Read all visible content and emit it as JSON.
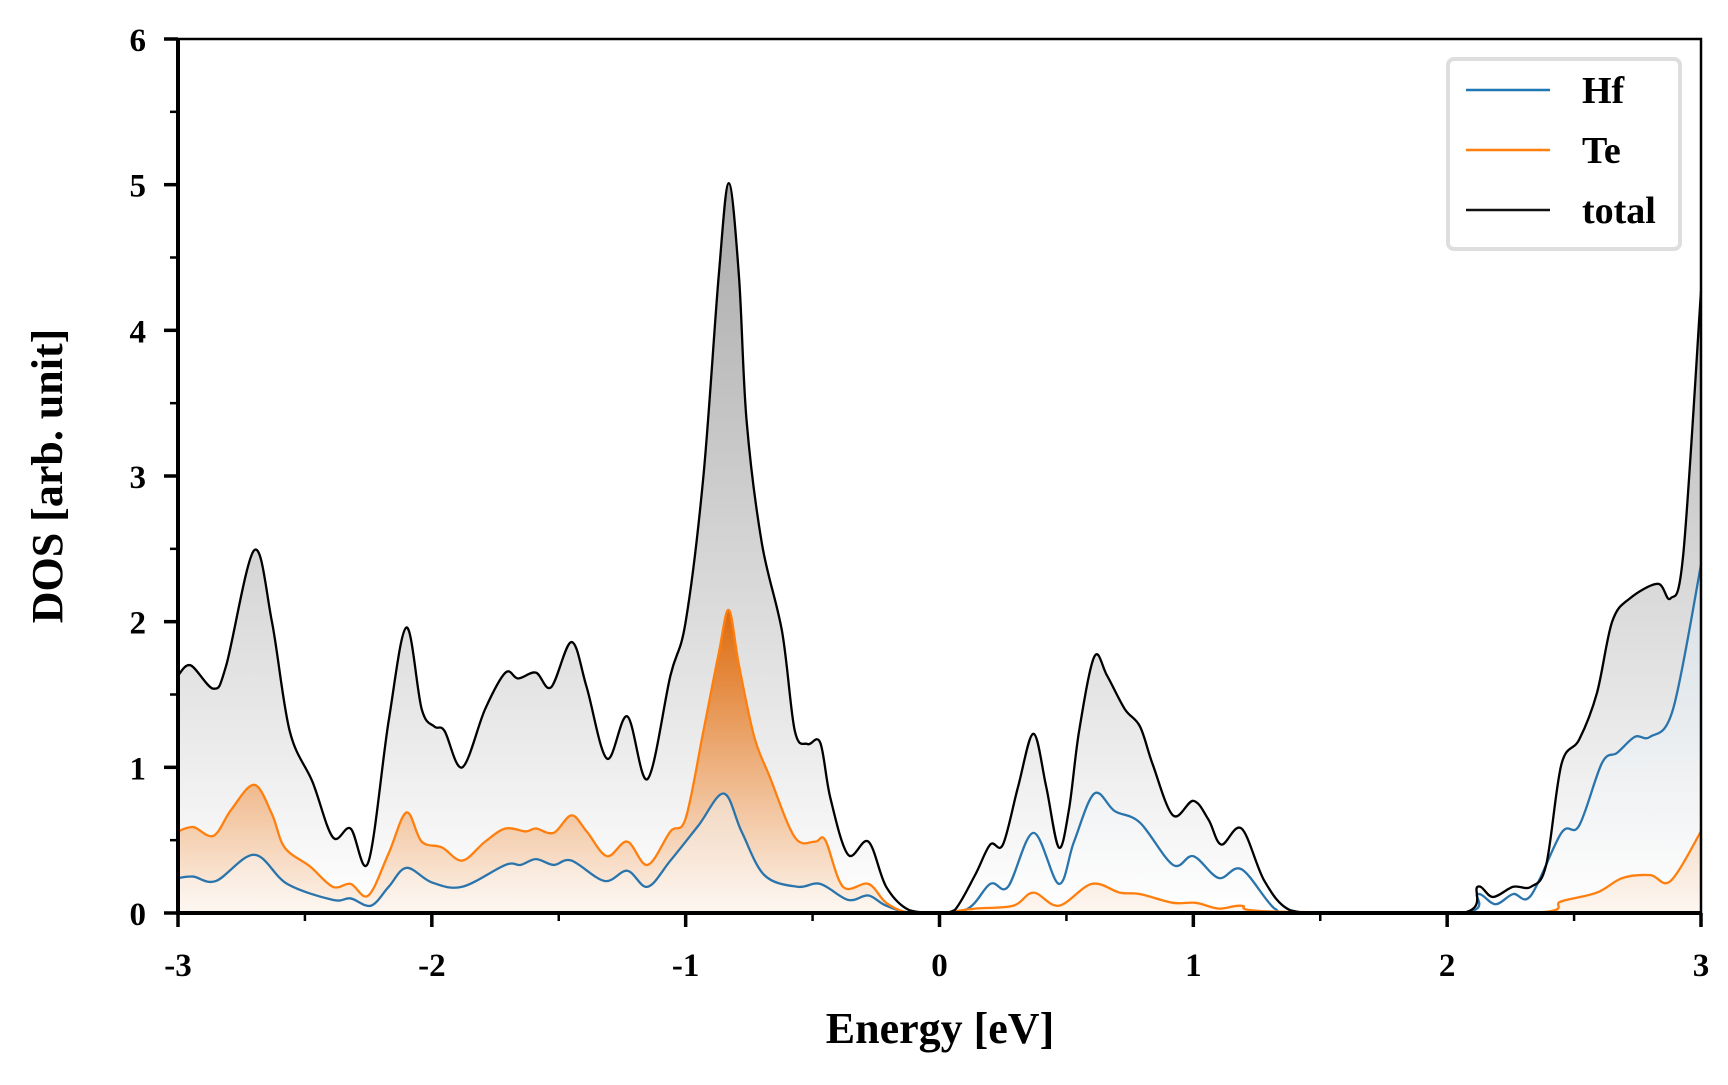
{
  "chart_data": {
    "type": "line",
    "title": "",
    "xlabel": "Energy [eV]",
    "ylabel": "DOS [arb. unit]",
    "xlim": [
      -3,
      3
    ],
    "ylim": [
      0,
      6
    ],
    "xticks": [
      "-3",
      "-2",
      "-1",
      "0",
      "1",
      "2",
      "3"
    ],
    "xtick_values": [
      -3,
      -2,
      -1,
      0,
      1,
      2,
      3
    ],
    "yticks": [
      "0",
      "1",
      "2",
      "3",
      "4",
      "5",
      "6"
    ],
    "ytick_values": [
      0,
      1,
      2,
      3,
      4,
      5,
      6
    ],
    "grid": false,
    "legend_position": "top-right",
    "series": [
      {
        "name": "Hf",
        "color": "#1f77b4",
        "points": [
          [
            -3.0,
            0.24
          ],
          [
            -2.94,
            0.25
          ],
          [
            -2.85,
            0.22
          ],
          [
            -2.7,
            0.4
          ],
          [
            -2.57,
            0.2
          ],
          [
            -2.39,
            0.09
          ],
          [
            -2.32,
            0.1
          ],
          [
            -2.24,
            0.05
          ],
          [
            -2.17,
            0.18
          ],
          [
            -2.1,
            0.31
          ],
          [
            -2.0,
            0.21
          ],
          [
            -1.88,
            0.18
          ],
          [
            -1.71,
            0.33
          ],
          [
            -1.65,
            0.33
          ],
          [
            -1.59,
            0.37
          ],
          [
            -1.52,
            0.33
          ],
          [
            -1.45,
            0.36
          ],
          [
            -1.32,
            0.22
          ],
          [
            -1.23,
            0.29
          ],
          [
            -1.15,
            0.18
          ],
          [
            -1.06,
            0.36
          ],
          [
            -0.95,
            0.6
          ],
          [
            -0.85,
            0.82
          ],
          [
            -0.78,
            0.56
          ],
          [
            -0.69,
            0.26
          ],
          [
            -0.56,
            0.18
          ],
          [
            -0.47,
            0.2
          ],
          [
            -0.36,
            0.09
          ],
          [
            -0.28,
            0.12
          ],
          [
            -0.21,
            0.05
          ],
          [
            -0.1,
            0.0
          ],
          [
            0.1,
            0.02
          ],
          [
            0.2,
            0.2
          ],
          [
            0.27,
            0.18
          ],
          [
            0.37,
            0.55
          ],
          [
            0.47,
            0.2
          ],
          [
            0.53,
            0.49
          ],
          [
            0.61,
            0.82
          ],
          [
            0.69,
            0.7
          ],
          [
            0.79,
            0.62
          ],
          [
            0.92,
            0.33
          ],
          [
            1.0,
            0.39
          ],
          [
            1.1,
            0.24
          ],
          [
            1.19,
            0.3
          ],
          [
            1.32,
            0.03
          ],
          [
            1.41,
            0.0
          ],
          [
            2.06,
            0.0
          ],
          [
            2.12,
            0.13
          ],
          [
            2.19,
            0.06
          ],
          [
            2.26,
            0.13
          ],
          [
            2.33,
            0.12
          ],
          [
            2.45,
            0.55
          ],
          [
            2.52,
            0.6
          ],
          [
            2.61,
            1.03
          ],
          [
            2.67,
            1.1
          ],
          [
            2.74,
            1.21
          ],
          [
            2.8,
            1.21
          ],
          [
            2.89,
            1.4
          ],
          [
            3.0,
            2.39
          ]
        ]
      },
      {
        "name": "Te",
        "color": "#ff7f0e",
        "points": [
          [
            -3.0,
            0.56
          ],
          [
            -2.94,
            0.59
          ],
          [
            -2.86,
            0.53
          ],
          [
            -2.79,
            0.71
          ],
          [
            -2.7,
            0.88
          ],
          [
            -2.63,
            0.68
          ],
          [
            -2.58,
            0.45
          ],
          [
            -2.48,
            0.32
          ],
          [
            -2.39,
            0.18
          ],
          [
            -2.32,
            0.2
          ],
          [
            -2.25,
            0.12
          ],
          [
            -2.17,
            0.41
          ],
          [
            -2.1,
            0.69
          ],
          [
            -2.04,
            0.49
          ],
          [
            -1.96,
            0.45
          ],
          [
            -1.88,
            0.36
          ],
          [
            -1.79,
            0.49
          ],
          [
            -1.71,
            0.58
          ],
          [
            -1.63,
            0.56
          ],
          [
            -1.59,
            0.58
          ],
          [
            -1.52,
            0.55
          ],
          [
            -1.45,
            0.67
          ],
          [
            -1.39,
            0.56
          ],
          [
            -1.31,
            0.39
          ],
          [
            -1.23,
            0.49
          ],
          [
            -1.15,
            0.33
          ],
          [
            -1.06,
            0.56
          ],
          [
            -1.0,
            0.65
          ],
          [
            -0.93,
            1.25
          ],
          [
            -0.87,
            1.78
          ],
          [
            -0.83,
            2.08
          ],
          [
            -0.79,
            1.7
          ],
          [
            -0.73,
            1.21
          ],
          [
            -0.67,
            0.94
          ],
          [
            -0.57,
            0.52
          ],
          [
            -0.49,
            0.49
          ],
          [
            -0.45,
            0.5
          ],
          [
            -0.38,
            0.18
          ],
          [
            -0.28,
            0.2
          ],
          [
            -0.21,
            0.07
          ],
          [
            -0.12,
            0.0
          ],
          [
            0.0,
            0.0
          ],
          [
            0.14,
            0.03
          ],
          [
            0.29,
            0.05
          ],
          [
            0.37,
            0.14
          ],
          [
            0.47,
            0.05
          ],
          [
            0.6,
            0.2
          ],
          [
            0.71,
            0.14
          ],
          [
            0.79,
            0.13
          ],
          [
            0.92,
            0.07
          ],
          [
            1.01,
            0.07
          ],
          [
            1.1,
            0.03
          ],
          [
            1.19,
            0.05
          ],
          [
            1.32,
            0.01
          ],
          [
            2.32,
            0.0
          ],
          [
            2.45,
            0.08
          ],
          [
            2.59,
            0.14
          ],
          [
            2.69,
            0.24
          ],
          [
            2.8,
            0.26
          ],
          [
            2.88,
            0.22
          ],
          [
            3.0,
            0.56
          ]
        ]
      },
      {
        "name": "total",
        "color": "#000000",
        "points": [
          [
            -3.0,
            1.63
          ],
          [
            -2.95,
            1.7
          ],
          [
            -2.86,
            1.54
          ],
          [
            -2.81,
            1.7
          ],
          [
            -2.7,
            2.49
          ],
          [
            -2.63,
            2.0
          ],
          [
            -2.56,
            1.25
          ],
          [
            -2.47,
            0.9
          ],
          [
            -2.39,
            0.52
          ],
          [
            -2.32,
            0.58
          ],
          [
            -2.25,
            0.35
          ],
          [
            -2.17,
            1.32
          ],
          [
            -2.1,
            1.96
          ],
          [
            -2.04,
            1.4
          ],
          [
            -1.99,
            1.28
          ],
          [
            -1.95,
            1.25
          ],
          [
            -1.88,
            1.0
          ],
          [
            -1.79,
            1.4
          ],
          [
            -1.71,
            1.65
          ],
          [
            -1.66,
            1.61
          ],
          [
            -1.59,
            1.65
          ],
          [
            -1.53,
            1.55
          ],
          [
            -1.45,
            1.86
          ],
          [
            -1.39,
            1.55
          ],
          [
            -1.31,
            1.06
          ],
          [
            -1.23,
            1.35
          ],
          [
            -1.15,
            0.92
          ],
          [
            -1.06,
            1.63
          ],
          [
            -1.0,
            2.0
          ],
          [
            -0.93,
            3.0
          ],
          [
            -0.87,
            4.37
          ],
          [
            -0.83,
            5.01
          ],
          [
            -0.79,
            4.37
          ],
          [
            -0.76,
            3.38
          ],
          [
            -0.7,
            2.54
          ],
          [
            -0.62,
            1.93
          ],
          [
            -0.57,
            1.25
          ],
          [
            -0.52,
            1.16
          ],
          [
            -0.47,
            1.17
          ],
          [
            -0.43,
            0.79
          ],
          [
            -0.36,
            0.4
          ],
          [
            -0.28,
            0.49
          ],
          [
            -0.21,
            0.18
          ],
          [
            -0.12,
            0.02
          ],
          [
            0.0,
            0.0
          ],
          [
            0.06,
            0.02
          ],
          [
            0.14,
            0.26
          ],
          [
            0.2,
            0.47
          ],
          [
            0.25,
            0.47
          ],
          [
            0.31,
            0.87
          ],
          [
            0.37,
            1.23
          ],
          [
            0.42,
            0.87
          ],
          [
            0.47,
            0.45
          ],
          [
            0.51,
            0.71
          ],
          [
            0.55,
            1.25
          ],
          [
            0.61,
            1.76
          ],
          [
            0.66,
            1.63
          ],
          [
            0.73,
            1.4
          ],
          [
            0.79,
            1.28
          ],
          [
            0.84,
            1.02
          ],
          [
            0.92,
            0.67
          ],
          [
            1.0,
            0.77
          ],
          [
            1.06,
            0.64
          ],
          [
            1.11,
            0.47
          ],
          [
            1.19,
            0.58
          ],
          [
            1.28,
            0.22
          ],
          [
            1.38,
            0.02
          ],
          [
            1.54,
            0.0
          ],
          [
            2.06,
            0.0
          ],
          [
            2.12,
            0.18
          ],
          [
            2.18,
            0.11
          ],
          [
            2.26,
            0.18
          ],
          [
            2.33,
            0.18
          ],
          [
            2.39,
            0.33
          ],
          [
            2.45,
            1.02
          ],
          [
            2.52,
            1.19
          ],
          [
            2.59,
            1.51
          ],
          [
            2.65,
            2.0
          ],
          [
            2.72,
            2.16
          ],
          [
            2.83,
            2.26
          ],
          [
            2.88,
            2.16
          ],
          [
            2.93,
            2.46
          ],
          [
            3.0,
            4.27
          ]
        ]
      }
    ]
  }
}
